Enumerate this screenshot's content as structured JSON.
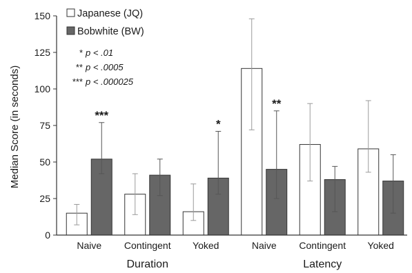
{
  "chart_data": {
    "type": "bar",
    "ylabel": "Median Score (in seconds)",
    "ylim": [
      0,
      150
    ],
    "yticks": [
      0,
      25,
      50,
      75,
      100,
      125,
      150
    ],
    "grid": false,
    "legend_position": "top-left",
    "groups": [
      {
        "label": "Duration",
        "categories": [
          "Naive",
          "Contingent",
          "Yoked"
        ]
      },
      {
        "label": "Latency",
        "categories": [
          "Naive",
          "Contingent",
          "Yoked"
        ]
      }
    ],
    "categories": [
      "Naive",
      "Contingent",
      "Yoked",
      "Naive",
      "Contingent",
      "Yoked"
    ],
    "series": [
      {
        "name": "Japanese (JQ)",
        "color": "#ffffff",
        "values": [
          15,
          28,
          16,
          114,
          62,
          59
        ],
        "error_low": [
          7,
          14,
          10,
          72,
          37,
          43
        ],
        "error_high": [
          21,
          42,
          35,
          148,
          90,
          92
        ]
      },
      {
        "name": "Bobwhite (BW)",
        "color": "#666666",
        "values": [
          52,
          41,
          39,
          45,
          38,
          37
        ],
        "error_low": [
          42,
          27,
          28,
          25,
          16,
          15
        ],
        "error_high": [
          77,
          52,
          71,
          85,
          47,
          55
        ]
      }
    ],
    "significance": [
      "***",
      "",
      "*",
      "**",
      "",
      ""
    ],
    "notes": [
      {
        "stars": "*",
        "text": "p < .01"
      },
      {
        "stars": "**",
        "text": "p < .0005"
      },
      {
        "stars": "***",
        "text": "p < .000025"
      }
    ]
  }
}
